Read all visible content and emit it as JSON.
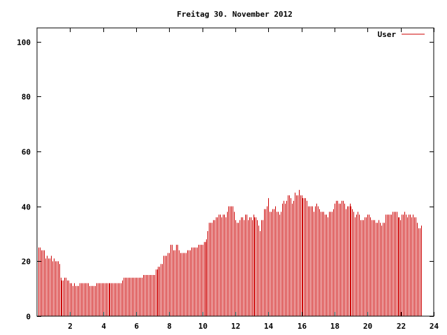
{
  "chart_data": {
    "type": "bar",
    "title": "Freitag 30. November 2012",
    "xlabel": "",
    "ylabel": "",
    "xlim": [
      0,
      24
    ],
    "ylim": [
      0,
      105
    ],
    "x_ticks": [
      2,
      4,
      6,
      8,
      10,
      12,
      14,
      16,
      18,
      20,
      22,
      24
    ],
    "y_ticks": [
      0,
      20,
      40,
      60,
      80,
      100
    ],
    "grid": false,
    "legend_position": "top-right",
    "series": [
      {
        "name": "User",
        "color": "#cc0000",
        "step_hours": 0.0833,
        "values": [
          25,
          25,
          24,
          24,
          24,
          21,
          22,
          21,
          21,
          22,
          20,
          21,
          20,
          20,
          20,
          19,
          14,
          13,
          13,
          14,
          14,
          13,
          13,
          12,
          12,
          11,
          12,
          11,
          11,
          11,
          12,
          12,
          12,
          12,
          12,
          12,
          12,
          11,
          11,
          11,
          11,
          11,
          12,
          12,
          12,
          12,
          12,
          12,
          12,
          12,
          12,
          12,
          12,
          12,
          12,
          12,
          12,
          12,
          12,
          12,
          12,
          13,
          14,
          14,
          14,
          14,
          14,
          14,
          14,
          14,
          14,
          14,
          14,
          14,
          14,
          14,
          15,
          15,
          15,
          15,
          15,
          15,
          15,
          15,
          15,
          17,
          17,
          18,
          18,
          19,
          19,
          22,
          22,
          22,
          23,
          23,
          26,
          26,
          24,
          24,
          26,
          26,
          24,
          23,
          23,
          23,
          23,
          23,
          24,
          24,
          24,
          25,
          25,
          25,
          25,
          25,
          26,
          26,
          26,
          26,
          27,
          27,
          28,
          31,
          34,
          34,
          34,
          35,
          35,
          36,
          36,
          37,
          37,
          36,
          37,
          37,
          36,
          38,
          40,
          40,
          40,
          40,
          38,
          35,
          34,
          34,
          35,
          36,
          36,
          35,
          37,
          37,
          35,
          36,
          36,
          35,
          37,
          36,
          36,
          35,
          33,
          31,
          35,
          35,
          39,
          39,
          40,
          43,
          38,
          38,
          39,
          39,
          40,
          38,
          38,
          37,
          38,
          41,
          42,
          41,
          42,
          44,
          44,
          43,
          41,
          42,
          45,
          44,
          44,
          46,
          44,
          44,
          43,
          43,
          43,
          42,
          40,
          40,
          40,
          40,
          38,
          40,
          41,
          40,
          39,
          38,
          38,
          38,
          37,
          37,
          36,
          38,
          38,
          38,
          39,
          41,
          42,
          42,
          41,
          41,
          42,
          42,
          41,
          39,
          40,
          40,
          41,
          40,
          39,
          38,
          36,
          37,
          38,
          37,
          35,
          35,
          35,
          36,
          36,
          37,
          37,
          36,
          35,
          35,
          35,
          34,
          34,
          35,
          34,
          33,
          34,
          34,
          37,
          37,
          37,
          37,
          37,
          38,
          38,
          38,
          38,
          36,
          36,
          35,
          37,
          37,
          38,
          37,
          36,
          37,
          37,
          36,
          37,
          36,
          36,
          34,
          32,
          32,
          33
        ]
      }
    ]
  }
}
